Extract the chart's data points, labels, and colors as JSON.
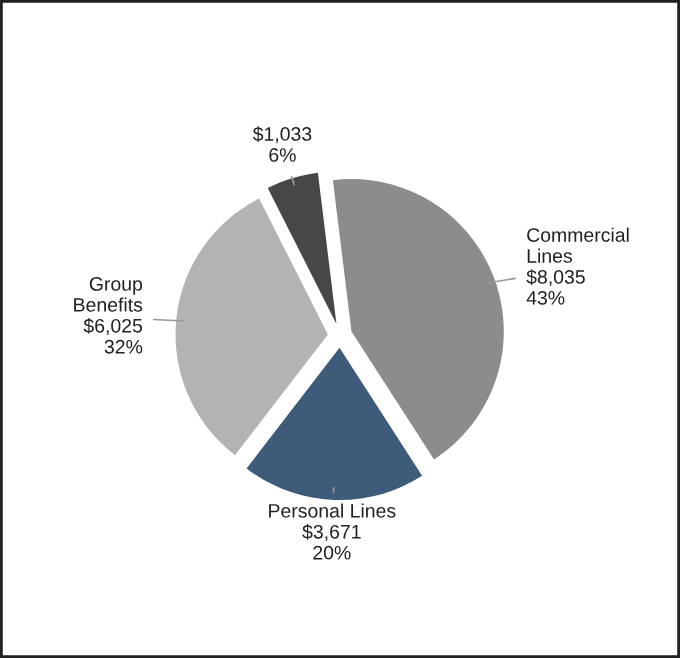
{
  "chart_data": {
    "type": "pie",
    "categories": [
      "Commercial Lines",
      "Personal Lines",
      "Group Benefits",
      null
    ],
    "values": [
      8035,
      3671,
      6025,
      1033
    ],
    "colors": [
      "#8c8c8c",
      "#3e5b79",
      "#b3b3b3",
      "#474747"
    ],
    "value_labels": [
      "$8,035\n43%",
      "$3,671\n20%",
      "$6,025\n32%",
      "$1,033\n6%"
    ]
  }
}
